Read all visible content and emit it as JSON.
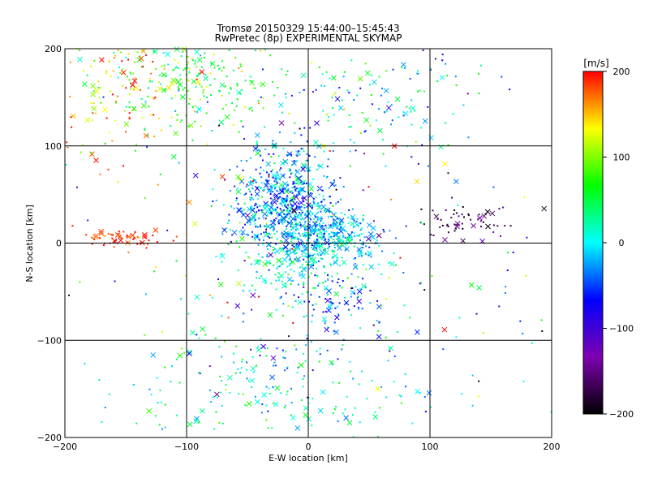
{
  "chart_data": {
    "type": "scatter",
    "title": "Tromsø 20150329 15:44:00–15:45:43",
    "subtitle": "RwPretec (8p) EXPERIMENTAL SKYMAP",
    "xlabel": "E-W location [km]",
    "ylabel": "N-S location [km]",
    "xlim": [
      -200,
      200
    ],
    "ylim": [
      -200,
      200
    ],
    "xticks": [
      -200,
      -100,
      0,
      100,
      200
    ],
    "yticks": [
      -200,
      -100,
      0,
      100,
      200
    ],
    "xtick_labels": [
      "−200",
      "−100",
      "0",
      "100",
      "200"
    ],
    "ytick_labels": [
      "−200",
      "−100",
      "0",
      "100",
      "200"
    ],
    "grid": true,
    "colorbar": {
      "label": "[m/s]",
      "range": [
        -200,
        200
      ],
      "ticks": [
        200,
        100,
        0,
        -100,
        -200
      ],
      "tick_labels": [
        "200",
        "100",
        "0",
        "−100",
        "−200"
      ],
      "colormap": [
        "#000000",
        "#7f00b0",
        "#0000ff",
        "#00ffff",
        "#00ff00",
        "#ffff00",
        "#ff0000"
      ]
    },
    "clusters": [
      {
        "x": -20,
        "y": 40,
        "sx": 20,
        "sy": 30,
        "n": 650,
        "v": -30,
        "vs": 40
      },
      {
        "x": 15,
        "y": 5,
        "sx": 20,
        "sy": 15,
        "n": 350,
        "v": -10,
        "vs": 30
      },
      {
        "x": -90,
        "y": 170,
        "sx": 40,
        "sy": 30,
        "n": 260,
        "v": 60,
        "vs": 40
      },
      {
        "x": -160,
        "y": 150,
        "sx": 25,
        "sy": 35,
        "n": 120,
        "v": 150,
        "vs": 40
      },
      {
        "x": -150,
        "y": 5,
        "sx": 15,
        "sy": 5,
        "n": 60,
        "v": 190,
        "vs": 15
      },
      {
        "x": 130,
        "y": 22,
        "sx": 20,
        "sy": 10,
        "n": 60,
        "v": -170,
        "vs": 25
      },
      {
        "x": -10,
        "y": -30,
        "sx": 25,
        "sy": 20,
        "n": 120,
        "v": 20,
        "vs": 30
      },
      {
        "x": 20,
        "y": -60,
        "sx": 15,
        "sy": 15,
        "n": 60,
        "v": -40,
        "vs": 30
      },
      {
        "x": -20,
        "y": -150,
        "sx": 60,
        "sy": 35,
        "n": 200,
        "v": 10,
        "vs": 40
      },
      {
        "x": 60,
        "y": 150,
        "sx": 50,
        "sy": 30,
        "n": 120,
        "v": 0,
        "vs": 50
      },
      {
        "x": 0,
        "y": 0,
        "sx": 120,
        "sy": 120,
        "n": 300,
        "v": 0,
        "vs": 100
      }
    ]
  }
}
